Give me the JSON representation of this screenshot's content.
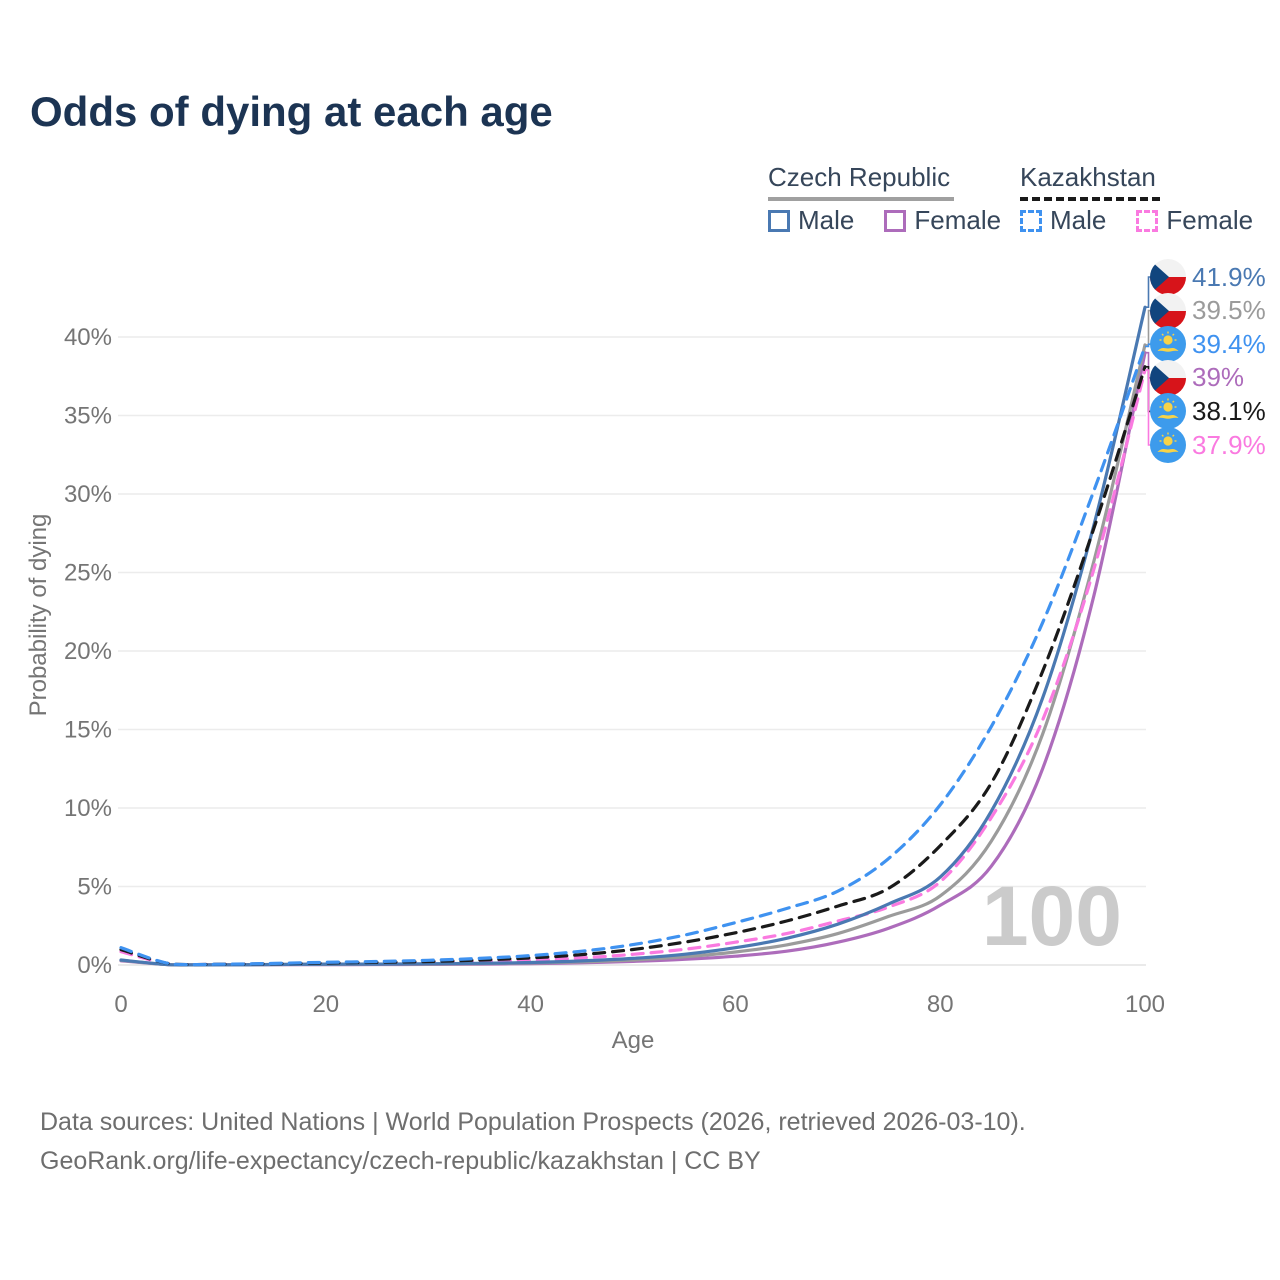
{
  "title": "Odds of dying at each age",
  "legend": {
    "czech": {
      "label": "Czech Republic",
      "male": "Male",
      "female": "Female"
    },
    "kazakh": {
      "label": "Kazakhstan",
      "male": "Male",
      "female": "Female"
    }
  },
  "axes": {
    "x": {
      "title": "Age",
      "ticks": [
        0,
        20,
        40,
        60,
        80,
        100
      ]
    },
    "y": {
      "title": "Probability of dying",
      "ticks": [
        {
          "v": 0,
          "label": "0%"
        },
        {
          "v": 5,
          "label": "5%"
        },
        {
          "v": 10,
          "label": "10%"
        },
        {
          "v": 15,
          "label": "15%"
        },
        {
          "v": 20,
          "label": "20%"
        },
        {
          "v": 25,
          "label": "25%"
        },
        {
          "v": 30,
          "label": "30%"
        },
        {
          "v": 35,
          "label": "35%"
        },
        {
          "v": 40,
          "label": "40%"
        }
      ]
    }
  },
  "watermark": "100",
  "end_labels": [
    {
      "series": "cz_male",
      "text": "41.9%",
      "color": "#4a79b2",
      "flag": "cz"
    },
    {
      "series": "cz_total",
      "text": "39.5%",
      "color": "#9b9b9b",
      "flag": "cz"
    },
    {
      "series": "kz_male",
      "text": "39.4%",
      "color": "#3f92f0",
      "flag": "kz"
    },
    {
      "series": "cz_female",
      "text": "39%",
      "color": "#ad6cbb",
      "flag": "cz"
    },
    {
      "series": "kz_total",
      "text": "38.1%",
      "color": "#1a1a1a",
      "flag": "kz"
    },
    {
      "series": "kz_female",
      "text": "37.9%",
      "color": "#fa7ae0",
      "flag": "kz"
    }
  ],
  "footer": {
    "line1": "Data sources: United Nations | World Population Prospects (2026, retrieved 2026-03-10).",
    "line2": "GeoRank.org/life-expectancy/czech-republic/kazakhstan | CC BY"
  },
  "chart_data": {
    "type": "line",
    "title": "Odds of dying at each age",
    "xlabel": "Age",
    "ylabel": "Probability of dying",
    "unit": "percent",
    "xlim": [
      0,
      100
    ],
    "ylim": [
      0,
      44
    ],
    "grid": "horizontal",
    "legend_position": "top-right",
    "x": [
      0,
      5,
      10,
      15,
      20,
      25,
      30,
      35,
      40,
      45,
      50,
      55,
      60,
      65,
      70,
      75,
      80,
      85,
      90,
      95,
      100
    ],
    "series": [
      {
        "key": "cz_female",
        "name": "Czech Republic Female",
        "color": "#ad6cbb",
        "dash": "solid",
        "values": [
          0.27,
          0.01,
          0.01,
          0.02,
          0.02,
          0.03,
          0.04,
          0.06,
          0.09,
          0.14,
          0.23,
          0.36,
          0.56,
          0.88,
          1.45,
          2.35,
          3.8,
          6.3,
          12.5,
          23.5,
          39.0
        ]
      },
      {
        "key": "cz_total",
        "name": "Czech Republic Total",
        "color": "#9b9b9b",
        "dash": "solid",
        "values": [
          0.3,
          0.01,
          0.01,
          0.03,
          0.04,
          0.05,
          0.06,
          0.09,
          0.13,
          0.2,
          0.32,
          0.52,
          0.83,
          1.28,
          2.0,
          3.1,
          4.4,
          7.9,
          14.7,
          25.7,
          39.5
        ]
      },
      {
        "key": "kz_female",
        "name": "Kazakhstan Female",
        "color": "#fa7ae0",
        "dash": "dashed",
        "values": [
          0.85,
          0.04,
          0.04,
          0.06,
          0.09,
          0.11,
          0.15,
          0.21,
          0.3,
          0.45,
          0.68,
          1.0,
          1.45,
          2.0,
          2.8,
          3.7,
          5.3,
          9.4,
          15.6,
          25.2,
          37.9
        ]
      },
      {
        "key": "cz_male",
        "name": "Czech Republic Male",
        "color": "#4a79b2",
        "dash": "solid",
        "values": [
          0.32,
          0.01,
          0.01,
          0.03,
          0.06,
          0.06,
          0.08,
          0.11,
          0.16,
          0.26,
          0.42,
          0.68,
          1.1,
          1.7,
          2.6,
          3.9,
          5.6,
          9.8,
          17.0,
          28.0,
          41.9
        ]
      },
      {
        "key": "kz_total",
        "name": "Kazakhstan Total",
        "color": "#1a1a1a",
        "dash": "dashed",
        "values": [
          0.98,
          0.05,
          0.05,
          0.08,
          0.13,
          0.17,
          0.22,
          0.32,
          0.45,
          0.66,
          0.99,
          1.45,
          2.05,
          2.8,
          3.75,
          4.9,
          7.6,
          11.6,
          18.7,
          27.8,
          38.1
        ]
      },
      {
        "key": "kz_male",
        "name": "Kazakhstan Male",
        "color": "#3f92f0",
        "dash": "dashed",
        "values": [
          1.1,
          0.05,
          0.05,
          0.1,
          0.17,
          0.22,
          0.3,
          0.42,
          0.6,
          0.88,
          1.3,
          1.9,
          2.7,
          3.6,
          4.7,
          6.8,
          10.2,
          15.2,
          21.8,
          30.2,
          39.4
        ]
      }
    ]
  },
  "flag_colors": {
    "cz_white": "#f2f2f2",
    "cz_red": "#d7141a",
    "cz_blue": "#11457e",
    "kz_blue": "#3d9bec",
    "kz_gold": "#f8d347"
  }
}
